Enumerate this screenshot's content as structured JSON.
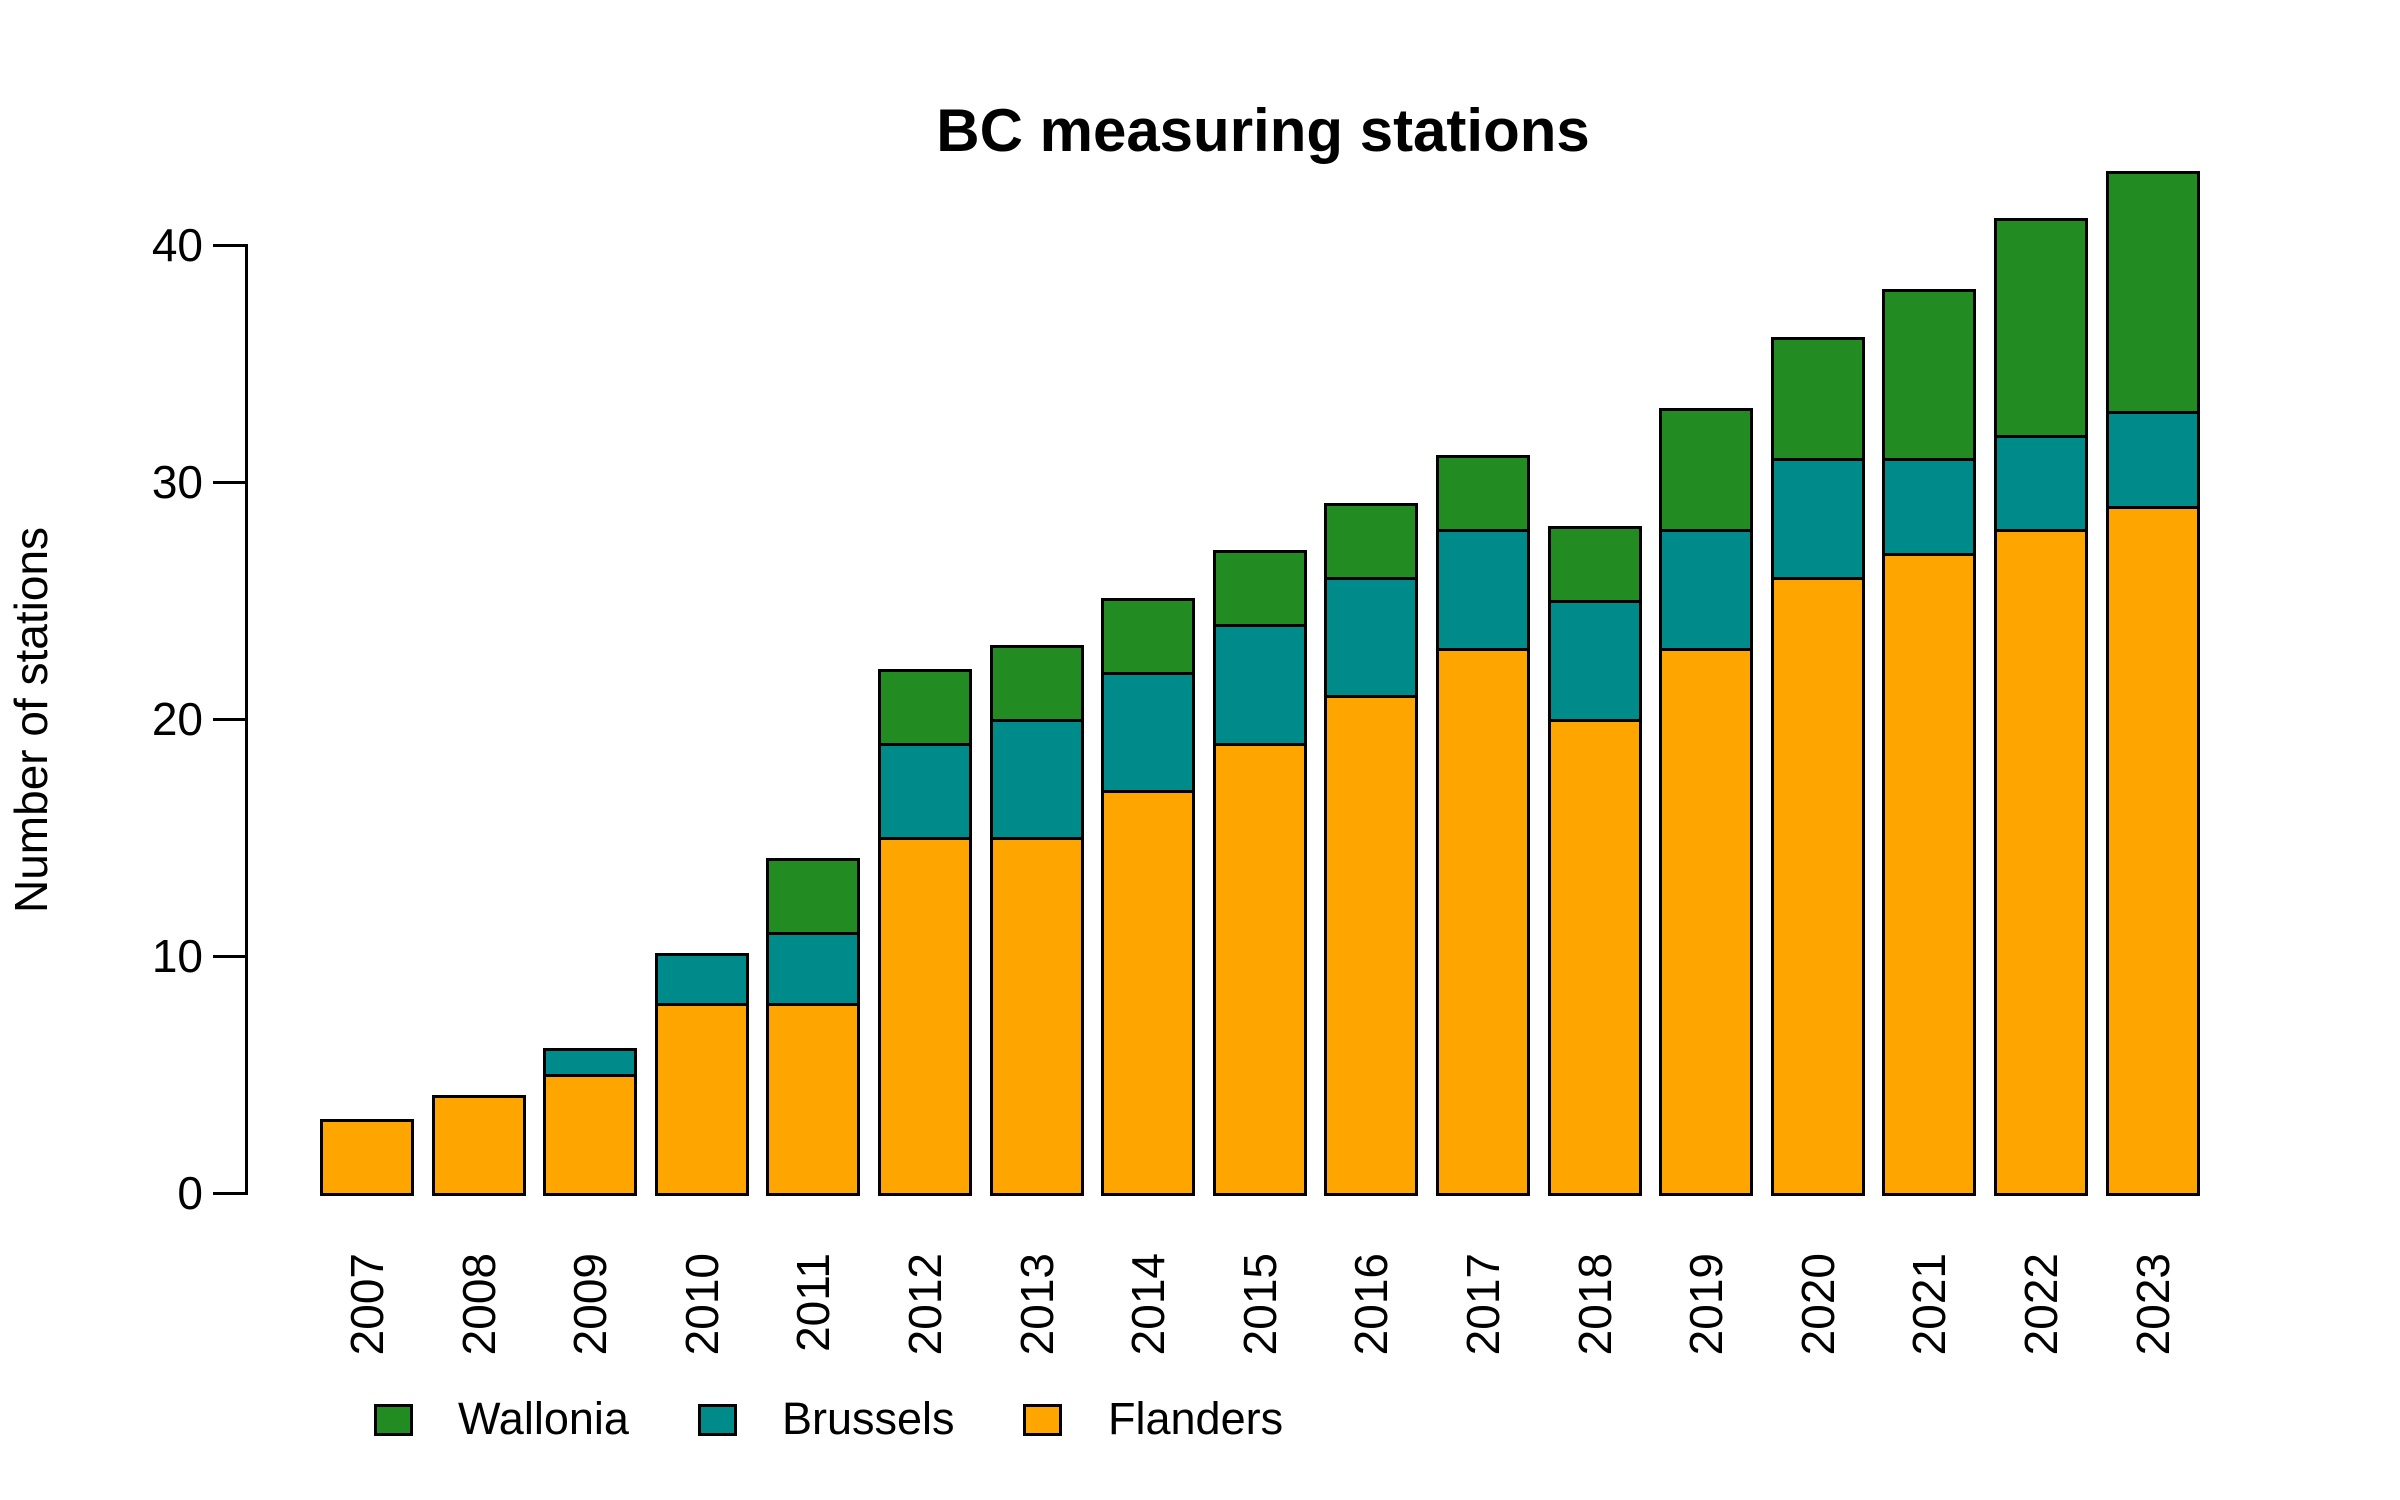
{
  "title": "BC measuring stations",
  "y_axis": {
    "label": "Number of stations",
    "ticks": [
      "0",
      "10",
      "20",
      "30",
      "40"
    ],
    "tick_values": [
      0,
      10,
      20,
      30,
      40
    ]
  },
  "legend": {
    "items": [
      {
        "label": "Wallonia",
        "color": "#228B22"
      },
      {
        "label": "Brussels",
        "color": "#008B8B"
      },
      {
        "label": "Flanders",
        "color": "#FFA500"
      }
    ]
  },
  "chart_data": {
    "type": "bar",
    "stacked": true,
    "title": "BC measuring stations",
    "xlabel": "",
    "ylabel": "Number of stations",
    "ylim": [
      0,
      40
    ],
    "grid": false,
    "legend_position": "bottom",
    "bar_border_color": "#000000",
    "categories": [
      "2007",
      "2008",
      "2009",
      "2010",
      "2011",
      "2012",
      "2013",
      "2014",
      "2015",
      "2016",
      "2017",
      "2018",
      "2019",
      "2020",
      "2021",
      "2022",
      "2023"
    ],
    "series": [
      {
        "name": "Flanders",
        "color": "#FFA500",
        "values": [
          3,
          4,
          5,
          8,
          8,
          15,
          15,
          17,
          19,
          21,
          23,
          20,
          23,
          26,
          27,
          28,
          29
        ]
      },
      {
        "name": "Brussels",
        "color": "#008B8B",
        "values": [
          0,
          0,
          1,
          2,
          3,
          4,
          5,
          5,
          5,
          5,
          5,
          5,
          5,
          5,
          4,
          4,
          4
        ]
      },
      {
        "name": "Wallonia",
        "color": "#228B22",
        "values": [
          0,
          0,
          0,
          0,
          3,
          3,
          3,
          3,
          3,
          3,
          3,
          3,
          5,
          5,
          7,
          9,
          10
        ]
      }
    ],
    "totals": [
      3,
      4,
      6,
      10,
      14,
      22,
      23,
      25,
      27,
      29,
      31,
      28,
      33,
      36,
      38,
      41,
      43
    ]
  }
}
